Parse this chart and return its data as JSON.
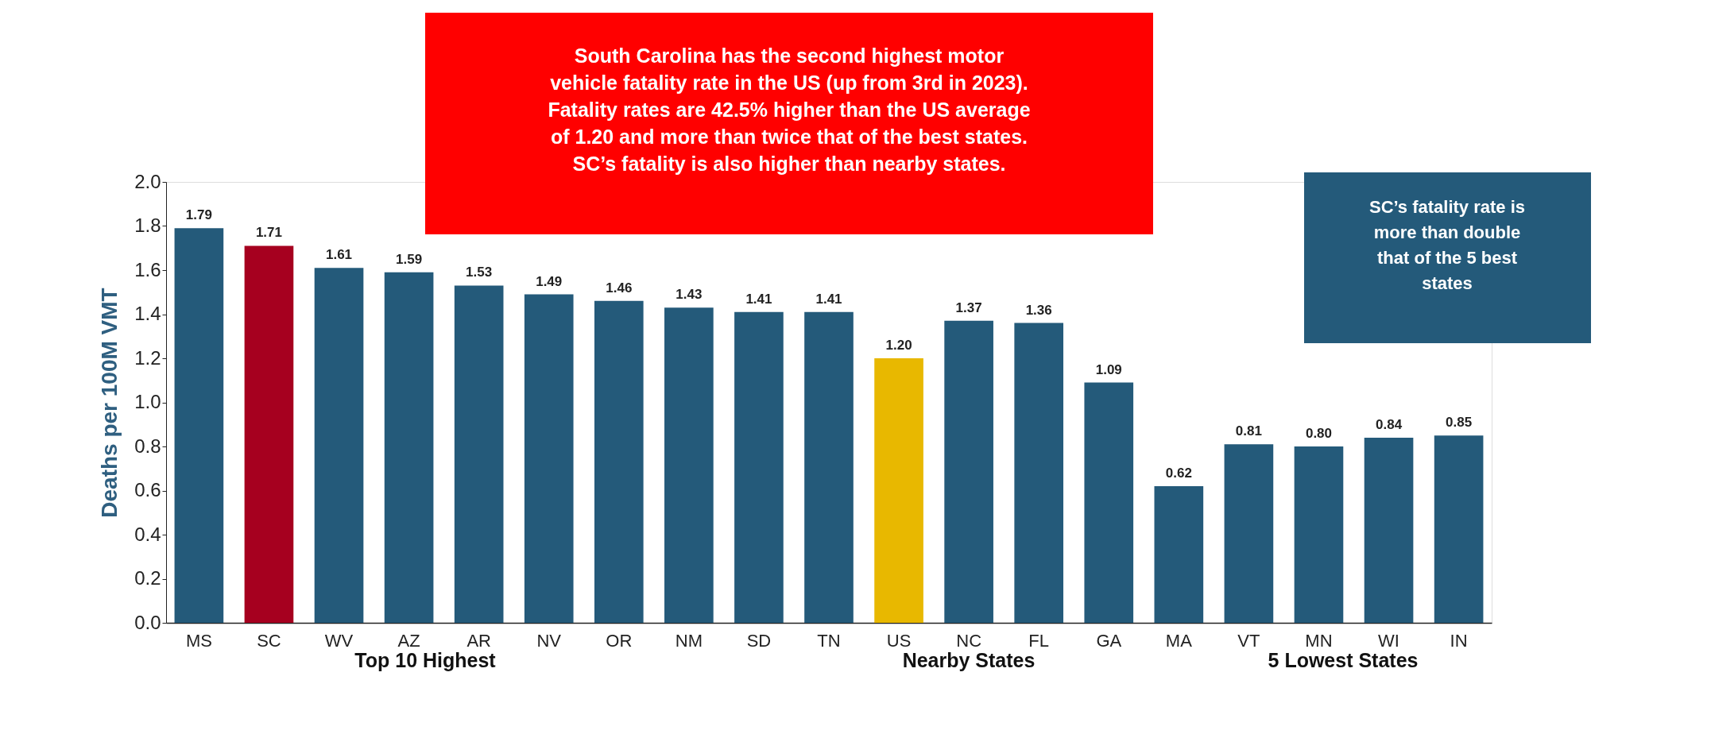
{
  "chart_data": {
    "type": "bar",
    "categories": [
      "MS",
      "SC",
      "WV",
      "AZ",
      "AR",
      "NV",
      "OR",
      "NM",
      "SD",
      "TN",
      null,
      "US",
      null,
      "NC",
      "FL",
      "GA",
      null,
      null,
      "MA",
      "VT",
      "MN",
      "WI",
      "IN"
    ],
    "values": [
      1.79,
      1.71,
      1.61,
      1.59,
      1.53,
      1.49,
      1.46,
      1.43,
      1.41,
      1.41,
      null,
      1.2,
      null,
      1.37,
      1.36,
      1.09,
      null,
      null,
      0.62,
      0.81,
      0.8,
      0.84,
      0.85
    ],
    "colors": [
      "#245a7a",
      "#a6001f",
      "#245a7a",
      "#245a7a",
      "#245a7a",
      "#245a7a",
      "#245a7a",
      "#245a7a",
      "#245a7a",
      "#245a7a",
      "#245a7a",
      "#e8b800",
      "#245a7a",
      "#245a7a",
      "#245a7a",
      "#245a7a",
      "#245a7a",
      "#245a7a",
      "#245a7a",
      "#245a7a",
      "#245a7a",
      "#245a7a",
      "#245a7a"
    ],
    "ylabel": "Deaths per 100M VMT",
    "ylim": [
      0,
      2
    ],
    "yticks": [
      {
        "value": 0,
        "label": "0.0"
      },
      {
        "value": 0.2,
        "label": "0.2"
      },
      {
        "value": 0.4,
        "label": "0.4"
      },
      {
        "value": 0.6,
        "label": "0.6"
      },
      {
        "value": 0.8,
        "label": "0.8"
      },
      {
        "value": 1,
        "label": "1.0"
      },
      {
        "value": 1.2,
        "label": "1.2"
      },
      {
        "value": 1.4,
        "label": "1.4"
      },
      {
        "value": 1.6,
        "label": "1.6"
      },
      {
        "value": 1.8,
        "label": "1.8"
      },
      {
        "value": 2,
        "label": "2.0"
      }
    ],
    "value_labels": [
      "1.79",
      "1.71",
      "1.61",
      "1.59",
      "1.53",
      "1.49",
      "1.46",
      "1.43",
      "1.41",
      "1.41",
      null,
      "1.20",
      null,
      "1.37",
      "1.36",
      "1.09",
      null,
      null,
      "0.62",
      "0.81",
      "0.80",
      "0.84",
      "0.85"
    ],
    "grid": false,
    "annotations": [
      "Top 10 Highest",
      "Nearby States",
      "5 Lowest States",
      "South Carolina has the second highest motor\nvehicle fatality rate in the US (up from 3rd in 2023).\nFatality rates are 42.5% higher than the US average\nof 1.20 and more than twice that of the best states.\nSC’s fatality is also higher than nearby states.",
      "SC’s fatality rate is\nmore than double\nthat of the 5 best\nstates"
    ]
  }
}
